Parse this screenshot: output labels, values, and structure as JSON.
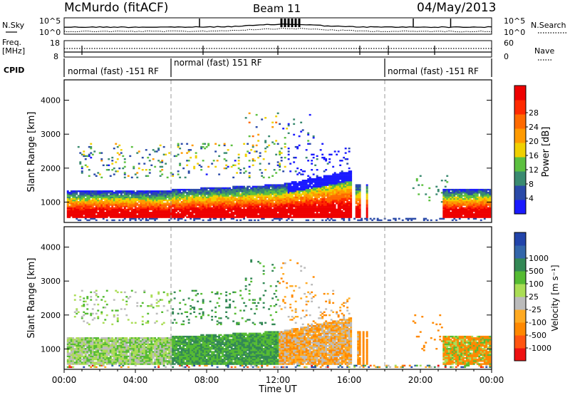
{
  "header": {
    "station": "McMurdo (fitACF)",
    "beam": "Beam 11",
    "date": "04/May/2013"
  },
  "top_panels": {
    "nsky_label": "N.Sky",
    "nsky_ticks": [
      "10^5",
      "10^0"
    ],
    "nsearch_label": "N.Search",
    "nsearch_ticks": [
      "10^5",
      "10^0"
    ],
    "freq_label_1": "Freq.",
    "freq_label_2": "[MHz]",
    "freq_ticks": [
      "18",
      "8"
    ],
    "nave_label": "Nave",
    "nave_ticks": [
      "60",
      "0"
    ],
    "cpid_label": "CPID",
    "cpid_segments": [
      {
        "label": "normal (fast) -151 RF",
        "start": 0,
        "end": 6.0
      },
      {
        "label": "normal (fast) 151 RF",
        "start": 6.0,
        "end": 18.0
      },
      {
        "label": "normal (fast) -151 RF",
        "start": 18.0,
        "end": 24.0
      }
    ]
  },
  "colors": {
    "power_scale": [
      "#1a1aff",
      "#2a4aa8",
      "#3a8a70",
      "#5cc040",
      "#f0d000",
      "#ff9a00",
      "#ff6a00",
      "#ff2a00",
      "#ee0000"
    ],
    "velocity_scale": [
      "#ee1111",
      "#ff5511",
      "#ff8800",
      "#ffaa22",
      "#bbbbbb",
      "#aadd55",
      "#55bb33",
      "#338855",
      "#3366aa",
      "#2244aa"
    ]
  },
  "chart_data": [
    {
      "type": "heatmap",
      "panel": "power",
      "ylabel": "Slant Range [km]",
      "yticks": [
        "1000",
        "2000",
        "3000",
        "4000"
      ],
      "ylim": [
        400,
        4600
      ],
      "xlim": [
        0,
        24
      ],
      "colorbar_label": "Power [dB]",
      "colorbar_ticks": [
        "4",
        "8",
        "12",
        "16",
        "20",
        "24",
        "28"
      ],
      "vertical_dashed_lines_at_hours": [
        6.0,
        18.0
      ],
      "regions": [
        {
          "t0": 0.1,
          "t1": 5.8,
          "r0": 500,
          "r1": 1300,
          "level": "high"
        },
        {
          "t0": 5.8,
          "t1": 12.0,
          "r0": 500,
          "r1": 1450,
          "level": "high"
        },
        {
          "t0": 12.0,
          "t1": 16.0,
          "r0": 650,
          "r1": 1900,
          "level": "mid"
        },
        {
          "t0": 21.2,
          "t1": 23.9,
          "r0": 600,
          "r1": 1400,
          "level": "high"
        }
      ]
    },
    {
      "type": "heatmap",
      "panel": "velocity",
      "ylabel": "Slant Range [km]",
      "yticks": [
        "1000",
        "2000",
        "3000",
        "4000"
      ],
      "ylim": [
        400,
        4600
      ],
      "xlim": [
        0,
        24
      ],
      "colorbar_label": "Velocity [m s⁻¹]",
      "colorbar_ticks": [
        "-1000",
        "-500",
        "-100",
        "-25",
        "25",
        "100",
        "500",
        "1000"
      ],
      "vertical_dashed_lines_at_hours": [
        6.0,
        18.0
      ],
      "xlabel": "Time UT",
      "xticks": [
        "00:00",
        "04:00",
        "08:00",
        "12:00",
        "16:00",
        "20:00",
        "00:00"
      ]
    }
  ]
}
